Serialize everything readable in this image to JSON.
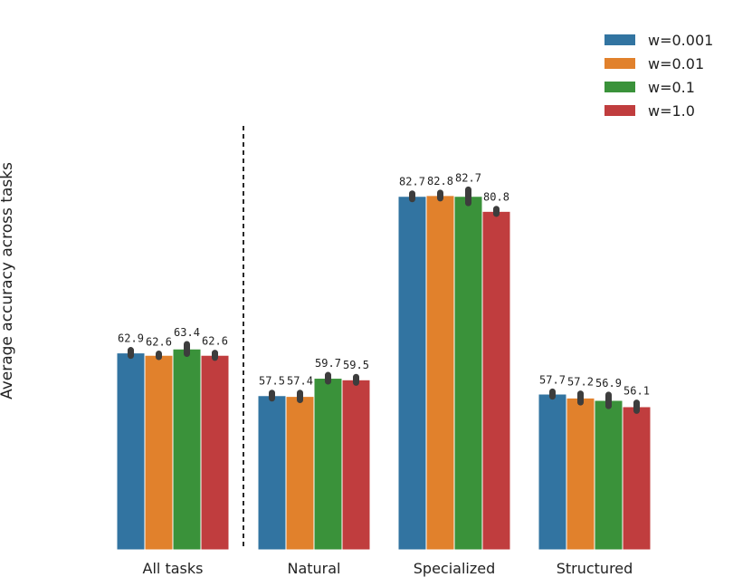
{
  "chart_data": {
    "type": "bar",
    "ylabel": "Average accuracy across tasks",
    "xlabel": "",
    "categories": [
      "All tasks",
      "Natural",
      "Specialized",
      "Structured"
    ],
    "series": [
      {
        "name": "w=0.001",
        "color": "#3274a1",
        "values": [
          62.9,
          57.5,
          82.7,
          57.7
        ],
        "labels": [
          "62.9",
          "57.5",
          "82.7",
          "57.7"
        ],
        "err": [
          0.35,
          0.35,
          0.35,
          0.3
        ]
      },
      {
        "name": "w=0.01",
        "color": "#e1812c",
        "values": [
          62.6,
          57.4,
          82.8,
          57.2
        ],
        "labels": [
          "62.6",
          "57.4",
          "82.8",
          "57.2"
        ],
        "err": [
          0.2,
          0.45,
          0.35,
          0.55
        ]
      },
      {
        "name": "w=0.1",
        "color": "#3a923a",
        "values": [
          63.4,
          59.7,
          82.7,
          56.9
        ],
        "labels": [
          "63.4",
          "59.7",
          "82.7",
          "56.9"
        ],
        "err": [
          0.6,
          0.4,
          0.85,
          0.7
        ]
      },
      {
        "name": "w=1.0",
        "color": "#c03d3e",
        "values": [
          62.6,
          59.5,
          80.8,
          56.1
        ],
        "labels": [
          "62.6",
          "59.5",
          "80.8",
          "56.1"
        ],
        "err": [
          0.3,
          0.35,
          0.3,
          0.5
        ]
      }
    ],
    "ylim": [
      38,
      82.9
    ],
    "yticks_visible": false,
    "grid": false,
    "separator": "dashed vertical line after first group",
    "legend_position": "top-right"
  }
}
